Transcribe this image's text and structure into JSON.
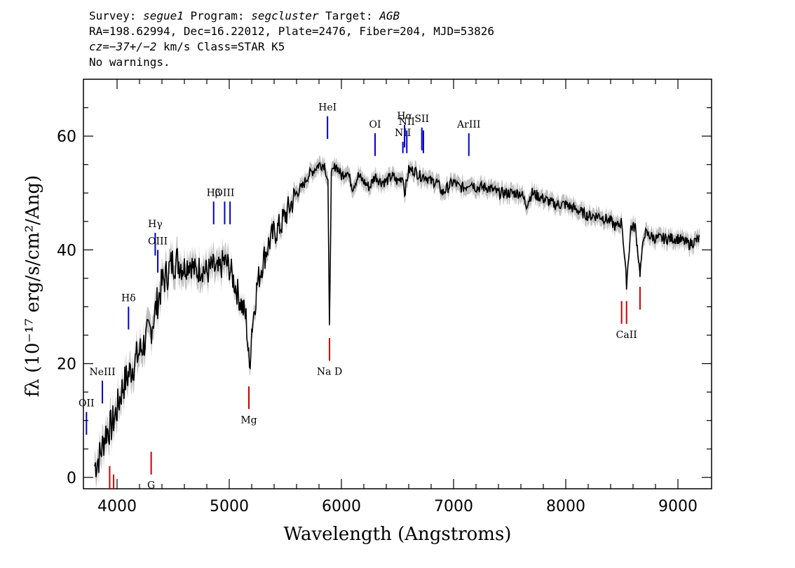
{
  "header": {
    "line1": {
      "survey_label": "Survey: ",
      "survey": "segue1",
      "program_label": " Program: ",
      "program": "segcluster",
      "target_label": " Target: ",
      "target": "AGB"
    },
    "line2": "RA=198.62994, Dec=16.22012, Plate=2476, Fiber=204, MJD=53826",
    "line3": {
      "cz": "cz=−37+/−2",
      "rest": " km/s Class=STAR K5"
    },
    "line4": "No warnings."
  },
  "chart_data": {
    "type": "line",
    "xlabel": "Wavelength (Angstroms)",
    "ylabel": "fλ (10⁻¹⁷ erg/s/cm²/Ang)",
    "xlim": [
      3700,
      9300
    ],
    "ylim": [
      -2,
      70
    ],
    "x_ticks": [
      4000,
      5000,
      6000,
      7000,
      8000,
      9000
    ],
    "y_ticks": [
      0,
      20,
      40,
      60
    ],
    "series": [
      {
        "color": "#000000",
        "error_color": "#c0c0c0",
        "x": [
          3800,
          3850,
          3900,
          3950,
          4000,
          4050,
          4100,
          4150,
          4200,
          4250,
          4300,
          4350,
          4400,
          4450,
          4500,
          4550,
          4600,
          4650,
          4700,
          4750,
          4800,
          4850,
          4900,
          4950,
          5000,
          5050,
          5100,
          5150,
          5180,
          5200,
          5250,
          5300,
          5350,
          5400,
          5450,
          5500,
          5550,
          5600,
          5650,
          5700,
          5750,
          5800,
          5850,
          5880,
          5893,
          5910,
          5950,
          6000,
          6050,
          6100,
          6150,
          6200,
          6250,
          6300,
          6350,
          6400,
          6450,
          6500,
          6550,
          6563,
          6600,
          6650,
          6700,
          6750,
          6800,
          6850,
          6900,
          6950,
          7000,
          7050,
          7100,
          7150,
          7200,
          7300,
          7400,
          7500,
          7600,
          7650,
          7700,
          7800,
          7900,
          8000,
          8100,
          8200,
          8300,
          8400,
          8450,
          8500,
          8542,
          8580,
          8620,
          8662,
          8700,
          8800,
          8900,
          9000,
          9100,
          9200
        ],
        "y": [
          2,
          4,
          8,
          9,
          12,
          16,
          18,
          20,
          22,
          24,
          26,
          30,
          34,
          36,
          38,
          38,
          37,
          38,
          36,
          37,
          36,
          37,
          36,
          38,
          37,
          34,
          31,
          28,
          19,
          26,
          34,
          38,
          41,
          43,
          44,
          46,
          48,
          50,
          51,
          53,
          54,
          55,
          55,
          52,
          26,
          53,
          55,
          53,
          54,
          51,
          53,
          52,
          51,
          53,
          52,
          52,
          53,
          52,
          53,
          50,
          54,
          54,
          53,
          53,
          52,
          52,
          50,
          51,
          52,
          51,
          51,
          52,
          51,
          51,
          50,
          50,
          50,
          48,
          50,
          49,
          48,
          48,
          47,
          46,
          46,
          45,
          44,
          45,
          34,
          44,
          44,
          36,
          43,
          42,
          42,
          42,
          41,
          42
        ]
      }
    ],
    "emission_lines": [
      {
        "label": "OII",
        "x": 3727,
        "y1": 7.5,
        "y2": 11.5
      },
      {
        "label": "NeIII",
        "x": 3869,
        "y1": 13,
        "y2": 17
      },
      {
        "label": "Hδ",
        "x": 4102,
        "y1": 26,
        "y2": 30
      },
      {
        "label": "Hγ",
        "x": 4340,
        "y1": 39,
        "y2": 43
      },
      {
        "label": "OIII",
        "x": 4363,
        "y1": 36,
        "y2": 40
      },
      {
        "label": "Hβ",
        "x": 4861,
        "y1": 44.5,
        "y2": 48.5
      },
      {
        "label": "OIII",
        "x": 4959,
        "y1": 44.5,
        "y2": 48.5
      },
      {
        "label": "",
        "x": 5007,
        "y1": 44.5,
        "y2": 48.5
      },
      {
        "label": "HeI",
        "x": 5876,
        "y1": 59.5,
        "y2": 63.5
      },
      {
        "label": "OI",
        "x": 6300,
        "y1": 56.5,
        "y2": 60.5
      },
      {
        "label": "NII",
        "x": 6548,
        "y1": 57,
        "y2": 59
      },
      {
        "label": "Hα",
        "x": 6563,
        "y1": 58,
        "y2": 62
      },
      {
        "label": "NII",
        "x": 6583,
        "y1": 57,
        "y2": 61
      },
      {
        "label": "SII",
        "x": 6717,
        "y1": 57.5,
        "y2": 61.5
      },
      {
        "label": "",
        "x": 6731,
        "y1": 57,
        "y2": 61
      },
      {
        "label": "ArIII",
        "x": 7136,
        "y1": 56.5,
        "y2": 60.5
      }
    ],
    "absorption_lines": [
      {
        "label": "",
        "x": 3934,
        "y1": -2,
        "y2": 2
      },
      {
        "label": "",
        "x": 3969,
        "y1": -2,
        "y2": 0.5
      },
      {
        "label": "G",
        "x": 4304,
        "y1": 0.5,
        "y2": 4.5
      },
      {
        "label": "Mg",
        "x": 5175,
        "y1": 12,
        "y2": 16
      },
      {
        "label": "Na D",
        "x": 5894,
        "y1": 20.5,
        "y2": 24.5
      },
      {
        "label": "",
        "x": 8498,
        "y1": 27,
        "y2": 31
      },
      {
        "label": "CaII",
        "x": 8542,
        "y1": 27,
        "y2": 31
      },
      {
        "label": "",
        "x": 8662,
        "y1": 29.5,
        "y2": 33.5
      }
    ]
  }
}
